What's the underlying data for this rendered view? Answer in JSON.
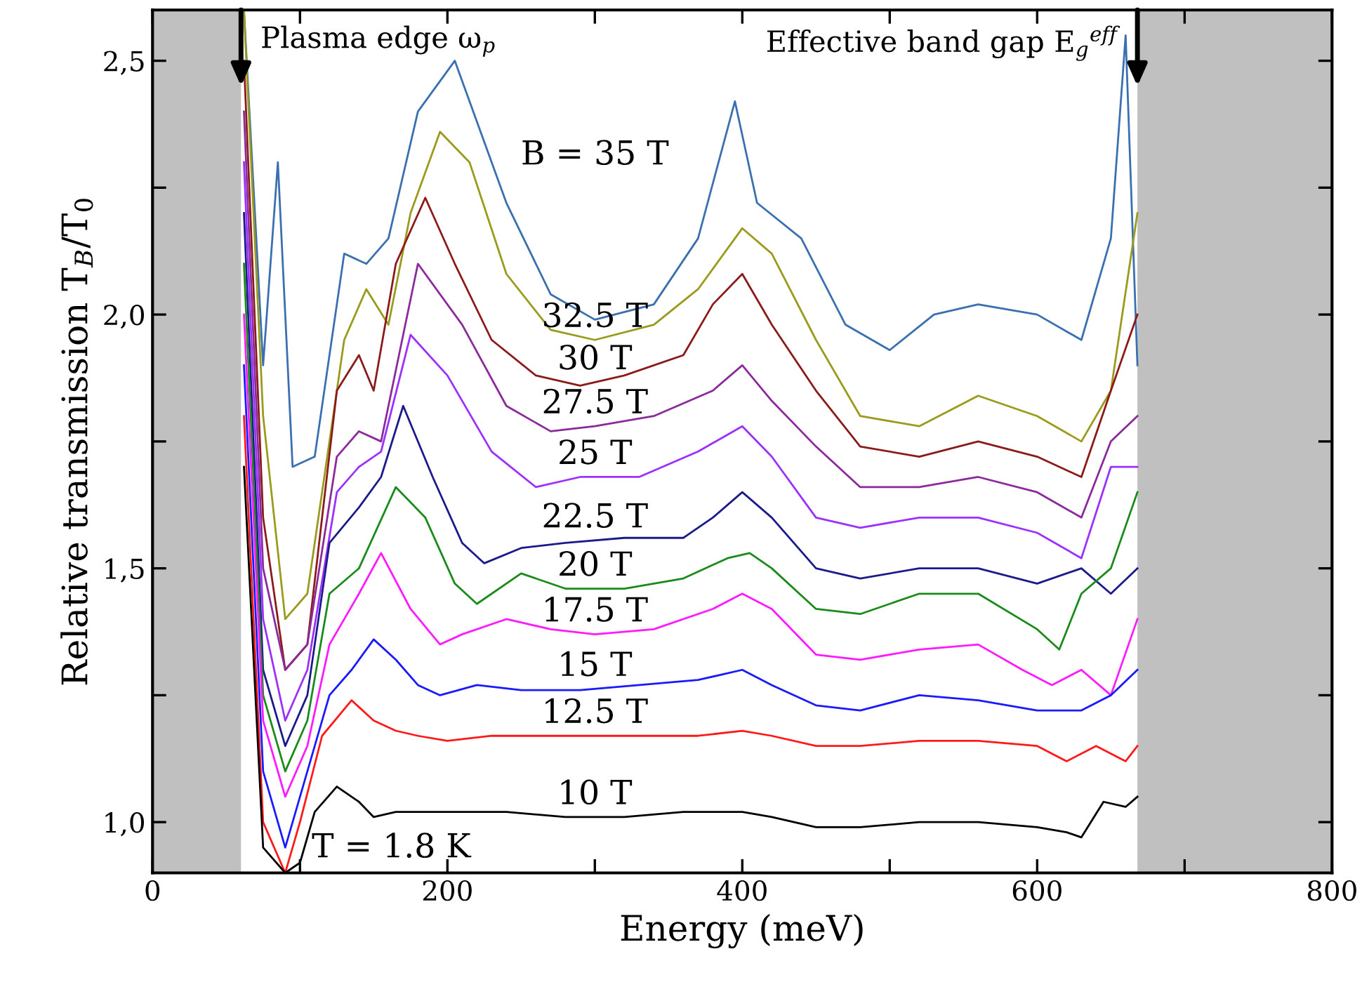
{
  "chart_data": {
    "type": "line",
    "xlabel": "Energy (meV)",
    "ylabel": "Relative transmission T$_{B}$/T$_{0}$",
    "xlim": [
      0,
      800
    ],
    "ylim": [
      0.9,
      2.6
    ],
    "xticks": [
      0,
      {
        "value": 100,
        "label": null
      },
      200,
      {
        "value": 300,
        "label": null
      },
      400,
      {
        "value": 500,
        "label": null
      },
      600,
      {
        "value": 700,
        "label": null
      },
      800
    ],
    "yticks": [
      {
        "value": 1.0,
        "label": "1,0"
      },
      {
        "value": 1.25,
        "label": null
      },
      {
        "value": 1.5,
        "label": "1,5"
      },
      {
        "value": 1.75,
        "label": null
      },
      {
        "value": 2.0,
        "label": "2,0"
      },
      {
        "value": 2.25,
        "label": null
      },
      {
        "value": 2.5,
        "label": "2,5"
      }
    ],
    "grid": false,
    "legend": false,
    "marker": "none",
    "line_style": "solid",
    "bands": [
      {
        "axis": "x",
        "from": 0,
        "to": 60,
        "color": "#c0c0c0"
      },
      {
        "axis": "x",
        "from": 668,
        "to": 800,
        "color": "#c0c0c0"
      }
    ],
    "annotations": [
      {
        "text": "Plasma edge ω$_{p}$",
        "x": 60,
        "y": 2.45
      },
      {
        "text": "Effective band gap E$_{g}$$^{eff}$",
        "x": 668,
        "y": 2.45
      },
      "T = 1.8 K"
    ],
    "series": [
      {
        "name": "B = 35 T",
        "color": "#3a6fb0",
        "x": [
          62,
          75,
          85,
          95,
          110,
          130,
          145,
          160,
          180,
          205,
          240,
          270,
          300,
          340,
          370,
          395,
          410,
          440,
          470,
          500,
          530,
          560,
          600,
          630,
          650,
          660,
          668
        ],
        "values": [
          2.6,
          1.9,
          2.3,
          1.7,
          1.72,
          2.12,
          2.1,
          2.15,
          2.4,
          2.5,
          2.22,
          2.04,
          1.99,
          2.02,
          2.15,
          2.42,
          2.22,
          2.15,
          1.98,
          1.93,
          2.0,
          2.02,
          2.0,
          1.95,
          2.15,
          2.55,
          1.9
        ]
      },
      {
        "name": "32.5 T",
        "color": "#9a9a1c",
        "x": [
          62,
          75,
          90,
          105,
          130,
          145,
          160,
          175,
          195,
          215,
          240,
          270,
          300,
          340,
          370,
          400,
          420,
          450,
          480,
          520,
          560,
          600,
          630,
          650,
          668
        ],
        "values": [
          2.6,
          1.8,
          1.4,
          1.45,
          1.95,
          2.05,
          1.98,
          2.2,
          2.36,
          2.3,
          2.08,
          1.97,
          1.95,
          1.98,
          2.05,
          2.17,
          2.12,
          1.95,
          1.8,
          1.78,
          1.84,
          1.8,
          1.75,
          1.85,
          2.2
        ]
      },
      {
        "name": "30 T",
        "color": "#8b1a1a",
        "x": [
          62,
          75,
          90,
          105,
          125,
          140,
          150,
          165,
          185,
          205,
          230,
          260,
          290,
          320,
          360,
          380,
          400,
          420,
          450,
          480,
          520,
          560,
          600,
          630,
          650,
          668
        ],
        "values": [
          2.5,
          1.6,
          1.3,
          1.35,
          1.85,
          1.92,
          1.85,
          2.1,
          2.23,
          2.1,
          1.95,
          1.88,
          1.86,
          1.88,
          1.92,
          2.02,
          2.08,
          1.98,
          1.85,
          1.74,
          1.72,
          1.75,
          1.72,
          1.68,
          1.85,
          2.0
        ]
      },
      {
        "name": "27.5 T",
        "color": "#8b2a9b",
        "x": [
          62,
          75,
          90,
          105,
          125,
          140,
          155,
          180,
          210,
          240,
          270,
          300,
          340,
          380,
          400,
          420,
          450,
          480,
          520,
          560,
          600,
          630,
          650,
          668
        ],
        "values": [
          2.4,
          1.5,
          1.3,
          1.35,
          1.72,
          1.77,
          1.75,
          2.1,
          1.98,
          1.82,
          1.77,
          1.78,
          1.8,
          1.85,
          1.9,
          1.83,
          1.74,
          1.66,
          1.66,
          1.68,
          1.65,
          1.6,
          1.75,
          1.8
        ]
      },
      {
        "name": "25 T",
        "color": "#9b30ff",
        "x": [
          62,
          75,
          90,
          105,
          125,
          140,
          155,
          175,
          200,
          230,
          260,
          290,
          330,
          370,
          400,
          420,
          450,
          480,
          520,
          560,
          600,
          630,
          650,
          668
        ],
        "values": [
          2.3,
          1.4,
          1.2,
          1.3,
          1.65,
          1.7,
          1.73,
          1.96,
          1.88,
          1.73,
          1.66,
          1.68,
          1.68,
          1.73,
          1.78,
          1.72,
          1.6,
          1.58,
          1.6,
          1.6,
          1.57,
          1.52,
          1.7,
          1.7
        ]
      },
      {
        "name": "22.5 T",
        "color": "#1a1a8b",
        "x": [
          62,
          75,
          90,
          105,
          120,
          140,
          155,
          170,
          190,
          210,
          225,
          250,
          280,
          320,
          360,
          380,
          400,
          420,
          450,
          480,
          520,
          560,
          600,
          630,
          650,
          668
        ],
        "values": [
          2.2,
          1.3,
          1.15,
          1.25,
          1.55,
          1.62,
          1.68,
          1.82,
          1.68,
          1.55,
          1.51,
          1.54,
          1.55,
          1.56,
          1.56,
          1.6,
          1.65,
          1.6,
          1.5,
          1.48,
          1.5,
          1.5,
          1.47,
          1.5,
          1.45,
          1.5
        ]
      },
      {
        "name": "20 T",
        "color": "#1a8b1a",
        "x": [
          62,
          75,
          90,
          105,
          120,
          140,
          165,
          185,
          205,
          220,
          250,
          280,
          320,
          360,
          390,
          405,
          420,
          450,
          480,
          520,
          560,
          600,
          615,
          630,
          650,
          668
        ],
        "values": [
          2.1,
          1.25,
          1.1,
          1.2,
          1.45,
          1.5,
          1.66,
          1.6,
          1.47,
          1.43,
          1.49,
          1.46,
          1.46,
          1.48,
          1.52,
          1.53,
          1.5,
          1.42,
          1.41,
          1.45,
          1.45,
          1.38,
          1.34,
          1.45,
          1.5,
          1.65
        ]
      },
      {
        "name": "17.5 T",
        "color": "#ff1aff",
        "x": [
          62,
          75,
          90,
          105,
          120,
          140,
          155,
          175,
          195,
          210,
          240,
          270,
          300,
          340,
          380,
          400,
          420,
          450,
          480,
          520,
          560,
          590,
          610,
          630,
          650,
          668
        ],
        "values": [
          2.0,
          1.2,
          1.05,
          1.15,
          1.35,
          1.45,
          1.53,
          1.42,
          1.35,
          1.37,
          1.4,
          1.38,
          1.37,
          1.38,
          1.42,
          1.45,
          1.42,
          1.33,
          1.32,
          1.34,
          1.35,
          1.3,
          1.27,
          1.3,
          1.25,
          1.4
        ]
      },
      {
        "name": "15 T",
        "color": "#1a1aff",
        "x": [
          62,
          75,
          90,
          105,
          120,
          135,
          150,
          165,
          180,
          195,
          220,
          250,
          290,
          330,
          370,
          400,
          420,
          450,
          480,
          520,
          560,
          600,
          630,
          650,
          668
        ],
        "values": [
          1.9,
          1.1,
          0.95,
          1.1,
          1.25,
          1.3,
          1.36,
          1.32,
          1.27,
          1.25,
          1.27,
          1.26,
          1.26,
          1.27,
          1.28,
          1.3,
          1.27,
          1.23,
          1.22,
          1.25,
          1.24,
          1.22,
          1.22,
          1.25,
          1.3
        ]
      },
      {
        "name": "12.5 T",
        "color": "#ff1a1a",
        "x": [
          62,
          75,
          90,
          100,
          115,
          135,
          150,
          165,
          180,
          200,
          230,
          270,
          320,
          370,
          400,
          420,
          450,
          480,
          520,
          560,
          600,
          620,
          640,
          660,
          668
        ],
        "values": [
          1.8,
          1.0,
          0.9,
          1.0,
          1.17,
          1.24,
          1.2,
          1.18,
          1.17,
          1.16,
          1.17,
          1.17,
          1.17,
          1.17,
          1.18,
          1.17,
          1.15,
          1.15,
          1.16,
          1.16,
          1.15,
          1.12,
          1.15,
          1.12,
          1.15
        ]
      },
      {
        "name": "10 T",
        "color": "#000000",
        "x": [
          62,
          75,
          90,
          100,
          110,
          125,
          140,
          150,
          165,
          180,
          200,
          240,
          280,
          320,
          360,
          400,
          420,
          450,
          480,
          520,
          560,
          600,
          620,
          630,
          645,
          660,
          668
        ],
        "values": [
          1.7,
          0.95,
          0.9,
          0.92,
          1.02,
          1.07,
          1.04,
          1.01,
          1.02,
          1.02,
          1.02,
          1.02,
          1.01,
          1.01,
          1.02,
          1.02,
          1.01,
          0.99,
          0.99,
          1.0,
          1.0,
          0.99,
          0.98,
          0.97,
          1.04,
          1.03,
          1.05
        ]
      }
    ]
  }
}
